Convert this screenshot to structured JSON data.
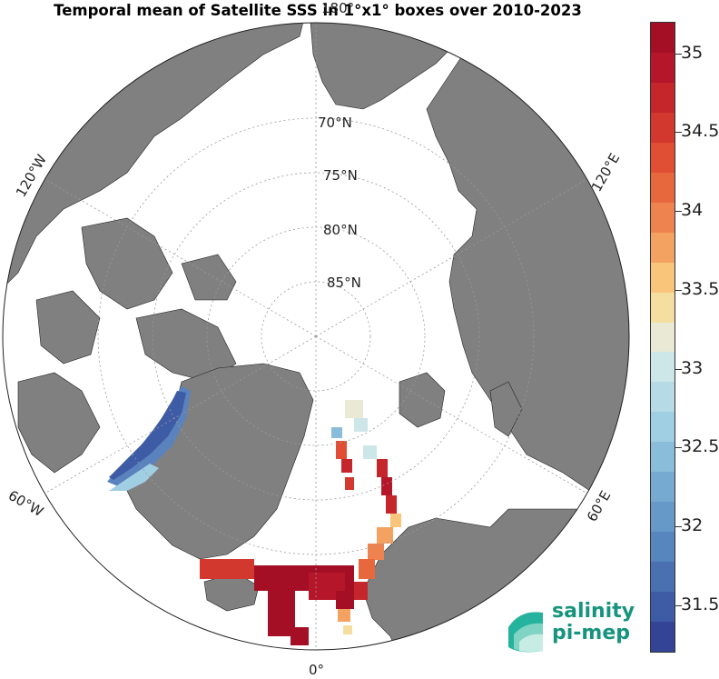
{
  "title": "Temporal mean of Satellite SSS in 1°x1° boxes over 2010-2023",
  "colorbar": {
    "tick_labels": [
      "35",
      "34.5",
      "34",
      "33.5",
      "33",
      "32.5",
      "32",
      "31.5"
    ],
    "tick_values": [
      35,
      34.5,
      34,
      33.5,
      33,
      32.5,
      32,
      31.5
    ],
    "min": 31.2,
    "max": 35.2,
    "colors": [
      "#a50f26",
      "#b5162a",
      "#c4262b",
      "#d3382e",
      "#e04f34",
      "#e8683e",
      "#ef8350",
      "#f4a262",
      "#f8c57a",
      "#f5dfa0",
      "#eae9d5",
      "#cde6e8",
      "#b6dbe7",
      "#a0cee3",
      "#8abdda",
      "#76aad1",
      "#6698c8",
      "#5785bd",
      "#4a70b1",
      "#3e5ba6",
      "#334496"
    ]
  },
  "map": {
    "lat_labels": [
      "70°N",
      "75°N",
      "80°N",
      "85°N"
    ],
    "lon_labels": {
      "w120": "120°W",
      "e120": "120°E",
      "w60": "60°W",
      "e60": "60°E",
      "zero": "0°",
      "top": "180°"
    },
    "land_color": "#808080",
    "ocean_color": "#ffffff"
  },
  "logo": {
    "line1": "salinity",
    "line2": "pi-mep"
  }
}
